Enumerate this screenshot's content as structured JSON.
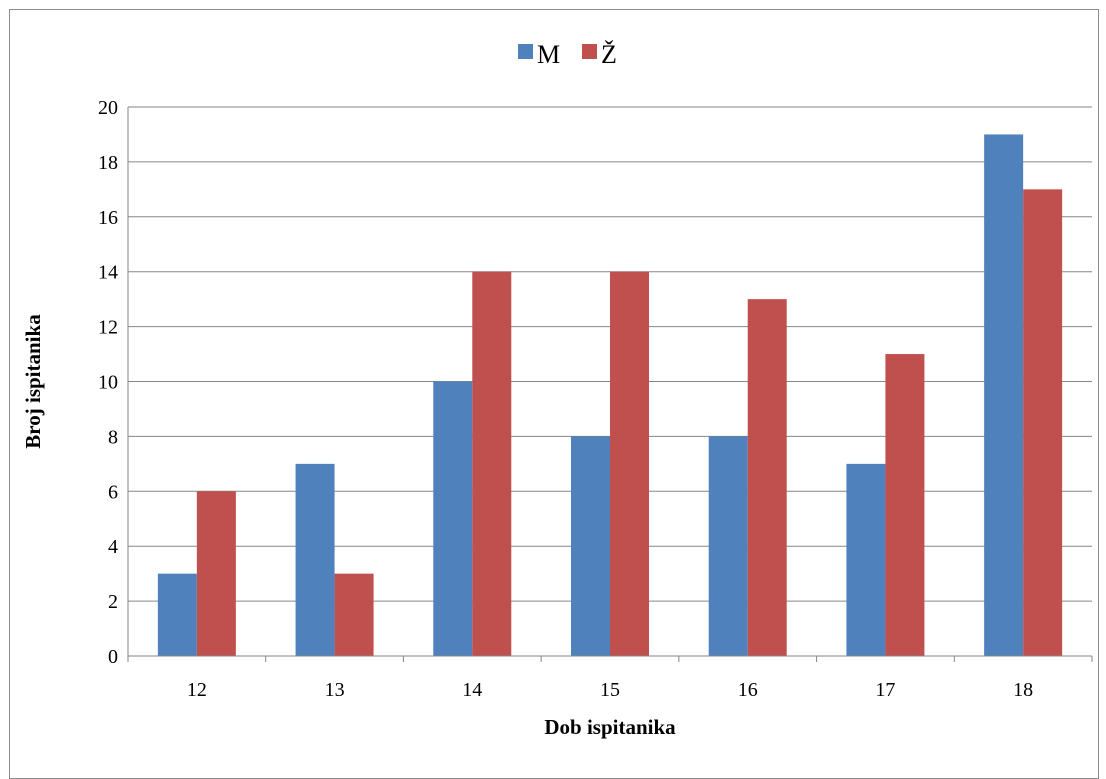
{
  "chart_data": {
    "type": "bar",
    "categories": [
      "12",
      "13",
      "14",
      "15",
      "16",
      "17",
      "18"
    ],
    "series": [
      {
        "name": "M",
        "values": [
          3,
          7,
          10,
          8,
          8,
          7,
          19
        ],
        "color": "#4F81BD"
      },
      {
        "name": "Ž",
        "values": [
          6,
          3,
          14,
          14,
          13,
          11,
          17
        ],
        "color": "#C0504D"
      }
    ],
    "title": "",
    "xlabel": "Dob ispitanika",
    "ylabel": "Broj ispitanika",
    "ylim": [
      0,
      20
    ],
    "yticks": [
      0,
      2,
      4,
      6,
      8,
      10,
      12,
      14,
      16,
      18,
      20
    ],
    "grid": true,
    "legend_position": "top"
  }
}
